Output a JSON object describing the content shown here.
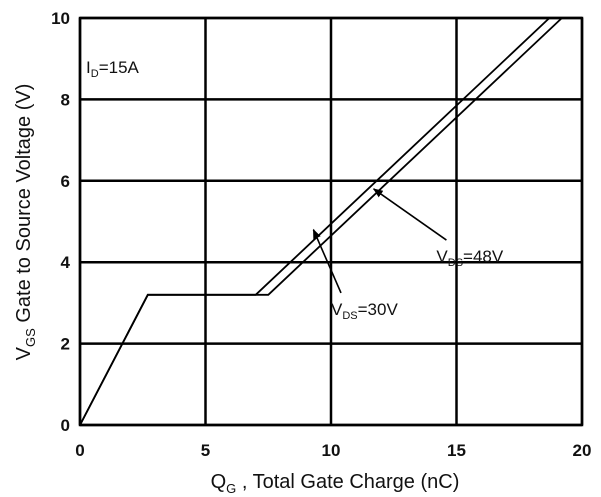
{
  "chart_data": {
    "type": "line",
    "xlabel": {
      "main": "Q",
      "sub": "G",
      "rest": " , Total Gate Charge (nC)"
    },
    "ylabel": {
      "main": "V",
      "sub": "GS",
      "rest": "  Gate to Source Voltage (V)"
    },
    "xlim": [
      0,
      20
    ],
    "ylim": [
      0,
      10
    ],
    "x_ticks": [
      "0",
      "5",
      "10",
      "15",
      "20"
    ],
    "y_ticks": [
      "0",
      "2",
      "4",
      "6",
      "8",
      "10"
    ],
    "grid": true,
    "condition": {
      "main": "I",
      "sub": "D",
      "rest": "=15A"
    },
    "series": [
      {
        "name": "VDS=30V",
        "label": {
          "main": "V",
          "sub": "DS",
          "rest": "=30V"
        },
        "points": [
          [
            0,
            0
          ],
          [
            2.7,
            3.2
          ],
          [
            7.0,
            3.2
          ],
          [
            18.7,
            10
          ]
        ]
      },
      {
        "name": "VDS=48V",
        "label": {
          "main": "V",
          "sub": "DS",
          "rest": "=48V"
        },
        "points": [
          [
            0,
            0
          ],
          [
            2.7,
            3.2
          ],
          [
            7.5,
            3.2
          ],
          [
            19.2,
            10
          ]
        ]
      }
    ],
    "annotations": [
      {
        "series": "VDS=30V",
        "text_at": [
          10.0,
          2.9
        ],
        "arrow_to": [
          9.3,
          4.8
        ]
      },
      {
        "series": "VDS=48V",
        "text_at": [
          14.2,
          4.2
        ],
        "arrow_to": [
          11.7,
          5.8
        ]
      }
    ]
  }
}
